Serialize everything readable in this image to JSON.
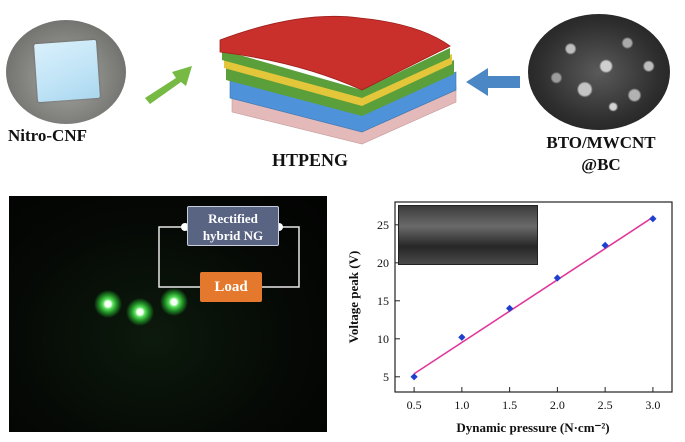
{
  "labels": {
    "nitro_cnf": "Nitro-CNF",
    "htpeng": "HTPENG",
    "bto_line1": "BTO/MWCNT",
    "bto_line2": "@BC",
    "rectified_line1": "Rectified",
    "rectified_line2": "hybrid NG",
    "load": "Load"
  },
  "colors": {
    "arrow_green": "#76b943",
    "arrow_blue": "#4b86c5",
    "layer_red": "#c9302c",
    "layer_green": "#5a9f3a",
    "layer_yellow": "#e3c63a",
    "layer_blue": "#4e93d9",
    "layer_pink": "#e3b9b9",
    "load_box": "#e4782c",
    "rectifier_box": "#596382",
    "series_line": "#e0379a",
    "series_marker": "#1f3fd0"
  },
  "chart_data": {
    "type": "scatter",
    "title": "",
    "xlabel": "Dynamic pressure (N·cm⁻²)",
    "ylabel": "Voltage peak (V)",
    "xlim": [
      0.3,
      3.2
    ],
    "ylim": [
      3,
      28
    ],
    "xticks": [
      "0.5",
      "1.0",
      "1.5",
      "2.0",
      "2.5",
      "3.0"
    ],
    "yticks": [
      "5",
      "10",
      "15",
      "20",
      "25"
    ],
    "xtick_values": [
      0.5,
      1.0,
      1.5,
      2.0,
      2.5,
      3.0
    ],
    "ytick_values": [
      5,
      10,
      15,
      20,
      25
    ],
    "grid": false,
    "series": [
      {
        "x": [
          0.5,
          1.0,
          1.5,
          2.0,
          2.5,
          3.0
        ],
        "y": [
          5.0,
          10.2,
          14.0,
          18.0,
          22.3,
          25.8
        ]
      }
    ],
    "fit_line": {
      "x": [
        0.5,
        3.0
      ],
      "y": [
        5.4,
        26.0
      ]
    }
  }
}
